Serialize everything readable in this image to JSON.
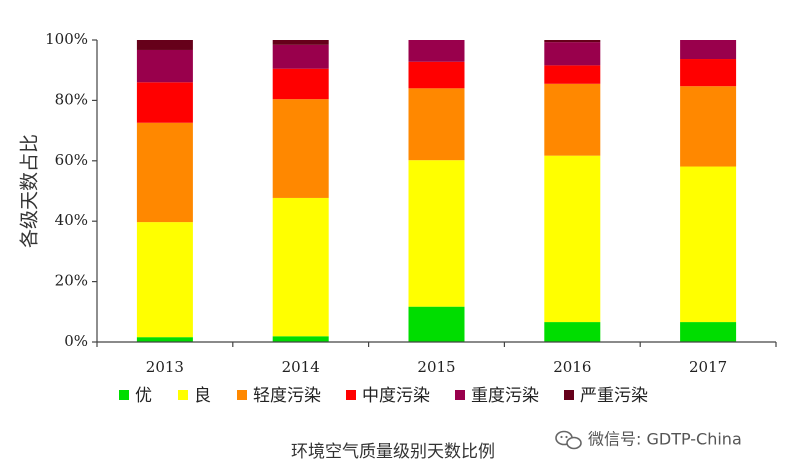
{
  "chart_data": {
    "type": "bar",
    "stacked": true,
    "categories": [
      "2013",
      "2014",
      "2015",
      "2016",
      "2017"
    ],
    "ylabel": "各级天数占比",
    "ylim": [
      0,
      100
    ],
    "yticks": [
      "0%",
      "20%",
      "40%",
      "60%",
      "80%",
      "100%"
    ],
    "grid": false,
    "legend_position": "bottom",
    "series": [
      {
        "name": "优",
        "color": "#00dd00",
        "values": [
          1.6,
          1.9,
          11.7,
          6.6,
          6.6
        ]
      },
      {
        "name": "良",
        "color": "#ffff00",
        "values": [
          38.1,
          45.8,
          48.5,
          55.1,
          51.5
        ]
      },
      {
        "name": "轻度污染",
        "color": "#ff8800",
        "values": [
          32.9,
          32.7,
          23.8,
          23.8,
          26.6
        ]
      },
      {
        "name": "中度污染",
        "color": "#ff0000",
        "values": [
          13.4,
          10.1,
          8.8,
          6.1,
          9.0
        ]
      },
      {
        "name": "重度污染",
        "color": "#99004c",
        "values": [
          10.7,
          7.9,
          7.2,
          7.7,
          6.3
        ]
      },
      {
        "name": "严重污染",
        "color": "#66001a",
        "values": [
          3.3,
          1.6,
          0.0,
          0.7,
          0.0
        ]
      }
    ]
  },
  "caption": "环境空气质量级别天数比例",
  "watermark": {
    "icon": "wechat-icon",
    "text": "微信号: GDTP-China"
  }
}
